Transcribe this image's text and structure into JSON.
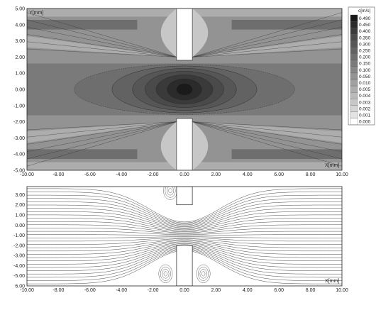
{
  "chart_data": [
    {
      "type": "heatmap",
      "title": "",
      "xlabel": "X[mm]",
      "ylabel": "Y[mm]",
      "xlim": [
        -10,
        10
      ],
      "ylim": [
        -5,
        5
      ],
      "x_ticks": [
        "-10.00",
        "-8.00",
        "-6.00",
        "-4.00",
        "-2.00",
        "0.00",
        "2.00",
        "4.00",
        "6.00",
        "8.00",
        "10.00"
      ],
      "y_ticks": [
        "5.00",
        "4.00",
        "3.00",
        "2.00",
        "1.00",
        "0.00",
        "-1.00",
        "-2.00",
        "-3.00",
        "-4.00",
        "-5.00"
      ],
      "legend_placement": "right",
      "colorbar": {
        "label": "c[m/s]",
        "levels": [
          "0.490",
          "0.450",
          "0.400",
          "0.350",
          "0.300",
          "0.250",
          "0.200",
          "0.150",
          "0.100",
          "0.050",
          "0.010",
          "0.005",
          "0.004",
          "0.003",
          "0.002",
          "0.001",
          "0.000"
        ],
        "colors": [
          "#1a1a1a",
          "#2b2b2b",
          "#3a3a3a",
          "#4a4a4a",
          "#565656",
          "#626262",
          "#6e6e6e",
          "#7a7a7a",
          "#878787",
          "#939393",
          "#a0a0a0",
          "#adadad",
          "#bababa",
          "#c7c7c7",
          "#d5d5d5",
          "#e3e3e3",
          "#ffffff"
        ]
      },
      "obstacles": [
        {
          "x_range": [
            -0.5,
            0.5
          ],
          "y_range": [
            1.8,
            5.0
          ]
        },
        {
          "x_range": [
            -0.5,
            0.5
          ],
          "y_range": [
            -5.0,
            -1.8
          ]
        }
      ]
    },
    {
      "type": "line",
      "title": "",
      "xlabel": "X[mm]",
      "ylabel": "",
      "xlim": [
        -10,
        10
      ],
      "ylim": [
        -6,
        3.8
      ],
      "x_ticks": [
        "-10.00",
        "-8.00",
        "-6.00",
        "-4.00",
        "-2.00",
        "0.00",
        "2.00",
        "4.00",
        "6.00",
        "8.00",
        "10.00"
      ],
      "y_ticks": [
        "3.00",
        "2.00",
        "1.00",
        "0.00",
        "-1.00",
        "-2.00",
        "-3.00",
        "-4.00",
        "-5.00",
        "6.00"
      ],
      "obstacles": [
        {
          "x_range": [
            -0.5,
            0.5
          ],
          "y_range": [
            2.0,
            3.8
          ]
        },
        {
          "x_range": [
            -0.5,
            0.5
          ],
          "y_range": [
            -6.0,
            -2.0
          ]
        }
      ]
    }
  ]
}
